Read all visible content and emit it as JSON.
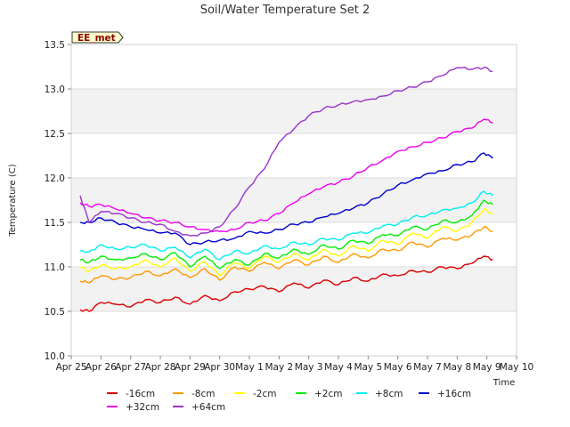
{
  "chart_data": {
    "type": "line",
    "title": "Soil/Water Temperature Set 2",
    "xlabel": "Time",
    "ylabel": "Temperature (C)",
    "station_badge": "EE_met",
    "xlim": [
      0,
      15
    ],
    "ylim": [
      10.0,
      13.5
    ],
    "x_ticks": [
      {
        "value": 0,
        "label": "Apr 25"
      },
      {
        "value": 1,
        "label": "Apr 26"
      },
      {
        "value": 2,
        "label": "Apr 27"
      },
      {
        "value": 3,
        "label": "Apr 28"
      },
      {
        "value": 4,
        "label": "Apr 29"
      },
      {
        "value": 5,
        "label": "Apr 30"
      },
      {
        "value": 6,
        "label": "May 1"
      },
      {
        "value": 7,
        "label": "May 2"
      },
      {
        "value": 8,
        "label": "May 3"
      },
      {
        "value": 9,
        "label": "May 4"
      },
      {
        "value": 10,
        "label": "May 5"
      },
      {
        "value": 11,
        "label": "May 6"
      },
      {
        "value": 12,
        "label": "May 7"
      },
      {
        "value": 13,
        "label": "May 8"
      },
      {
        "value": 14,
        "label": "May 9"
      },
      {
        "value": 15,
        "label": "May 10"
      }
    ],
    "y_ticks": [
      {
        "value": 10.0,
        "label": "10.0"
      },
      {
        "value": 10.5,
        "label": "10.5"
      },
      {
        "value": 11.0,
        "label": "11.0"
      },
      {
        "value": 11.5,
        "label": "11.5"
      },
      {
        "value": 12.0,
        "label": "12.0"
      },
      {
        "value": 12.5,
        "label": "12.5"
      },
      {
        "value": 13.0,
        "label": "13.0"
      },
      {
        "value": 13.5,
        "label": "13.5"
      }
    ],
    "series": [
      {
        "name": "-16cm",
        "color": "#dd0000",
        "x": [
          0.3,
          0.6,
          1,
          1.5,
          2,
          2.5,
          3,
          3.5,
          4,
          4.5,
          5,
          5.5,
          6,
          6.5,
          7,
          7.5,
          8,
          8.5,
          9,
          9.5,
          10,
          10.5,
          11,
          11.5,
          12,
          12.5,
          13,
          13.5,
          13.9,
          14.2
        ],
        "y": [
          10.52,
          10.5,
          10.6,
          10.58,
          10.55,
          10.63,
          10.6,
          10.66,
          10.58,
          10.68,
          10.62,
          10.72,
          10.75,
          10.78,
          10.72,
          10.82,
          10.76,
          10.85,
          10.8,
          10.88,
          10.84,
          10.92,
          10.9,
          10.96,
          10.94,
          11.0,
          10.98,
          11.04,
          11.12,
          11.08
        ]
      },
      {
        "name": "-8cm",
        "color": "#ff9900",
        "x": [
          0.3,
          0.6,
          1,
          1.5,
          2,
          2.5,
          3,
          3.5,
          4,
          4.5,
          5,
          5.5,
          6,
          6.5,
          7,
          7.5,
          8,
          8.5,
          9,
          9.5,
          10,
          10.5,
          11,
          11.5,
          12,
          12.5,
          13,
          13.5,
          13.9,
          14.2
        ],
        "y": [
          10.84,
          10.82,
          10.9,
          10.86,
          10.88,
          10.95,
          10.9,
          10.98,
          10.88,
          10.98,
          10.85,
          11.0,
          10.95,
          11.05,
          10.98,
          11.08,
          11.02,
          11.12,
          11.05,
          11.15,
          11.1,
          11.2,
          11.18,
          11.28,
          11.22,
          11.32,
          11.3,
          11.36,
          11.45,
          11.4
        ]
      },
      {
        "name": "-2cm",
        "color": "#ffff00",
        "x": [
          0.3,
          0.6,
          1,
          1.5,
          2,
          2.5,
          3,
          3.5,
          4,
          4.5,
          5,
          5.5,
          6,
          6.5,
          7,
          7.5,
          8,
          8.5,
          9,
          9.5,
          10,
          10.5,
          11,
          11.5,
          12,
          12.5,
          13,
          13.5,
          13.9,
          14.2
        ],
        "y": [
          11.0,
          10.95,
          11.02,
          10.98,
          11.0,
          11.08,
          11.0,
          11.1,
          10.95,
          11.06,
          10.9,
          11.05,
          10.98,
          11.12,
          11.05,
          11.15,
          11.08,
          11.2,
          11.12,
          11.24,
          11.18,
          11.3,
          11.25,
          11.38,
          11.32,
          11.45,
          11.4,
          11.5,
          11.65,
          11.6
        ]
      },
      {
        "name": "+2cm",
        "color": "#00ee00",
        "x": [
          0.3,
          0.6,
          1,
          1.5,
          2,
          2.5,
          3,
          3.5,
          4,
          4.5,
          5,
          5.5,
          6,
          6.5,
          7,
          7.5,
          8,
          8.5,
          9,
          9.5,
          10,
          10.5,
          11,
          11.5,
          12,
          12.5,
          13,
          13.5,
          13.9,
          14.2
        ],
        "y": [
          11.08,
          11.05,
          11.12,
          11.08,
          11.1,
          11.15,
          11.08,
          11.16,
          11.0,
          11.12,
          10.98,
          11.08,
          11.02,
          11.15,
          11.1,
          11.2,
          11.14,
          11.25,
          11.2,
          11.3,
          11.26,
          11.36,
          11.35,
          11.45,
          11.42,
          11.52,
          11.5,
          11.58,
          11.75,
          11.7
        ]
      },
      {
        "name": "+8cm",
        "color": "#00eeee",
        "x": [
          0.3,
          0.6,
          1,
          1.5,
          2,
          2.5,
          3,
          3.5,
          4,
          4.5,
          5,
          5.5,
          6,
          6.5,
          7,
          7.5,
          8,
          8.5,
          9,
          9.5,
          10,
          10.5,
          11,
          11.5,
          12,
          12.5,
          13,
          13.5,
          13.9,
          14.2
        ],
        "y": [
          11.18,
          11.17,
          11.25,
          11.2,
          11.22,
          11.25,
          11.18,
          11.22,
          11.1,
          11.2,
          11.08,
          11.18,
          11.15,
          11.24,
          11.2,
          11.28,
          11.25,
          11.32,
          11.3,
          11.38,
          11.38,
          11.46,
          11.48,
          11.56,
          11.58,
          11.64,
          11.66,
          11.72,
          11.85,
          11.8
        ]
      },
      {
        "name": "+16cm",
        "color": "#0000cc",
        "x": [
          0.3,
          0.6,
          1,
          1.5,
          2,
          2.5,
          3,
          3.5,
          4,
          4.5,
          5,
          5.5,
          6,
          6.5,
          7,
          7.5,
          8,
          8.5,
          9,
          9.5,
          10,
          10.5,
          11,
          11.5,
          12,
          12.5,
          13,
          13.5,
          13.9,
          14.2
        ],
        "y": [
          11.5,
          11.5,
          11.55,
          11.5,
          11.45,
          11.42,
          11.38,
          11.38,
          11.25,
          11.28,
          11.3,
          11.32,
          11.4,
          11.38,
          11.42,
          11.48,
          11.5,
          11.56,
          11.6,
          11.66,
          11.72,
          11.82,
          11.92,
          11.98,
          12.05,
          12.08,
          12.15,
          12.18,
          12.28,
          12.22
        ]
      },
      {
        "name": "+32cm",
        "color": "#ee00ee",
        "x": [
          0.3,
          0.6,
          1,
          1.5,
          2,
          2.5,
          3,
          3.5,
          4,
          4.5,
          5,
          5.5,
          6,
          6.5,
          7,
          7.5,
          8,
          8.5,
          9,
          9.5,
          10,
          10.5,
          11,
          11.5,
          12,
          12.5,
          13,
          13.5,
          13.9,
          14.2
        ],
        "y": [
          11.72,
          11.68,
          11.7,
          11.65,
          11.6,
          11.55,
          11.52,
          11.5,
          11.45,
          11.42,
          11.4,
          11.42,
          11.5,
          11.52,
          11.6,
          11.72,
          11.82,
          11.9,
          11.95,
          12.02,
          12.12,
          12.2,
          12.3,
          12.35,
          12.4,
          12.45,
          12.52,
          12.56,
          12.66,
          12.62
        ]
      },
      {
        "name": "+64cm",
        "color": "#9933cc",
        "x": [
          0.3,
          0.6,
          1,
          1.5,
          2,
          2.5,
          3,
          3.5,
          4,
          4.5,
          5,
          5.5,
          6,
          6.5,
          7,
          7.5,
          8,
          8.5,
          9,
          9.5,
          10,
          10.5,
          11,
          11.5,
          12,
          12.5,
          13,
          13.5,
          13.9,
          14.2
        ],
        "y": [
          11.8,
          11.5,
          11.62,
          11.6,
          11.55,
          11.5,
          11.48,
          11.4,
          11.35,
          11.38,
          11.45,
          11.65,
          11.9,
          12.1,
          12.4,
          12.55,
          12.7,
          12.78,
          12.82,
          12.86,
          12.88,
          12.92,
          12.98,
          13.02,
          13.08,
          13.15,
          13.24,
          13.22,
          13.24,
          13.2
        ]
      }
    ]
  }
}
